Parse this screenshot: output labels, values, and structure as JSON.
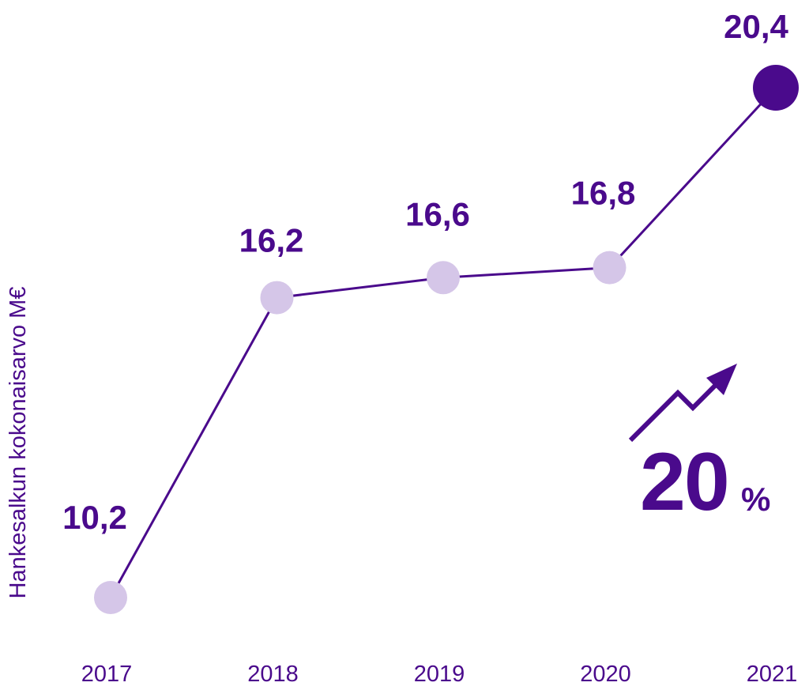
{
  "chart_data": {
    "type": "line",
    "categories": [
      "2017",
      "2018",
      "2019",
      "2020",
      "2021"
    ],
    "values": [
      10.2,
      16.2,
      16.6,
      16.8,
      20.4
    ],
    "value_labels": [
      "10,2",
      "16,2",
      "16,6",
      "16,8",
      "20,4"
    ],
    "title": "",
    "xlabel": "",
    "ylabel": "Hankesalkun kokonaisarvo M€",
    "ylim": [
      10.2,
      20.4
    ],
    "grid": false,
    "highlight_last": true
  },
  "callout": {
    "value": "20",
    "unit": "%",
    "icon": "trend-up-arrow-icon"
  },
  "colors": {
    "primary": "#4a0a8c",
    "marker_light": "#d5c6e8",
    "marker_highlight": "#4a0a8c",
    "line": "#4a0a8c"
  }
}
